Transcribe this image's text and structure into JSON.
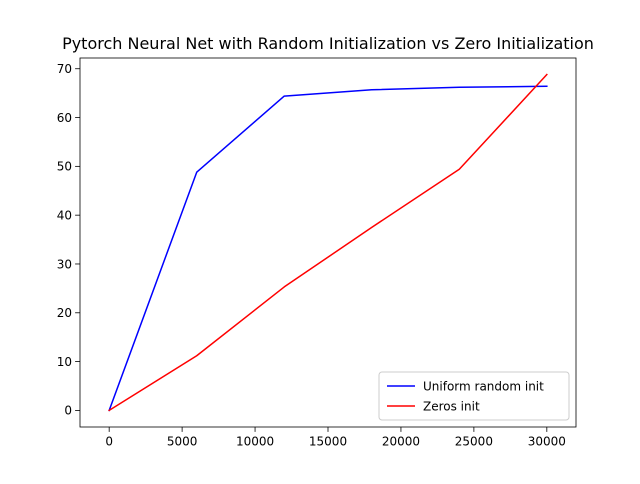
{
  "chart_data": {
    "type": "line",
    "title": "Pytorch Neural Net with Random Initialization vs Zero Initialization",
    "xlabel": "",
    "ylabel": "",
    "xlim": [
      -2000,
      32000
    ],
    "ylim": [
      -3.4,
      72.2
    ],
    "xticks": [
      0,
      5000,
      10000,
      15000,
      20000,
      25000,
      30000
    ],
    "xtick_labels": [
      "0",
      "5000",
      "10000",
      "15000",
      "20000",
      "25000",
      "30000"
    ],
    "yticks": [
      0,
      10,
      20,
      30,
      40,
      50,
      60,
      70
    ],
    "ytick_labels": [
      "0",
      "10",
      "20",
      "30",
      "40",
      "50",
      "60",
      "70"
    ],
    "grid": false,
    "legend_position": "lower-right",
    "series": [
      {
        "name": "Uniform random init",
        "color": "#0000ff",
        "x": [
          0,
          6000,
          12000,
          18000,
          24000,
          30000
        ],
        "y": [
          0,
          48.8,
          64.4,
          65.7,
          66.2,
          66.4
        ]
      },
      {
        "name": "Zeros init",
        "color": "#ff0000",
        "x": [
          0,
          6000,
          12000,
          18000,
          24000,
          30000
        ],
        "y": [
          0,
          11.2,
          25.3,
          37.5,
          49.4,
          68.8
        ]
      }
    ]
  }
}
